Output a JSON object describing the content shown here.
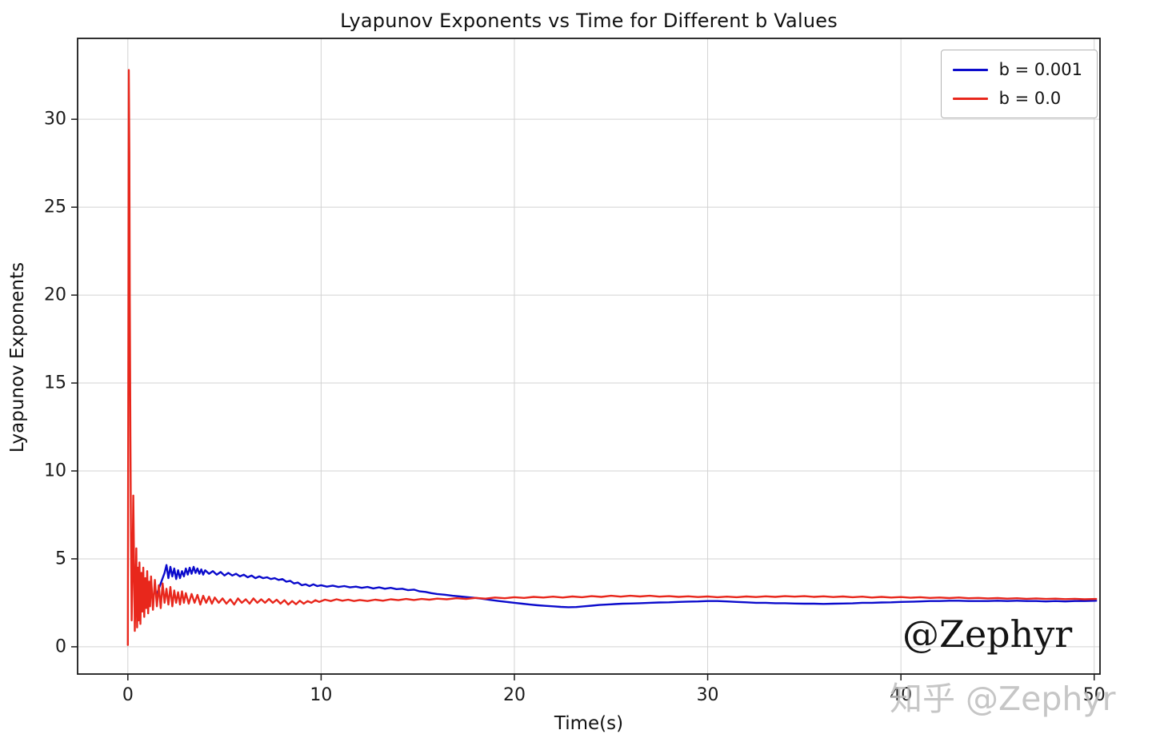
{
  "watermarks": {
    "primary": "@Zephyr",
    "secondary": "知乎 @Zephyr"
  },
  "chart_data": {
    "type": "line",
    "title": "Lyapunov Exponents vs Time for Different b Values",
    "xlabel": "Time(s)",
    "ylabel": "Lyapunov Exponents",
    "xlim": [
      -2.6,
      50.3
    ],
    "ylim": [
      -1.55,
      34.6
    ],
    "xticks": [
      0,
      10,
      20,
      30,
      40,
      50
    ],
    "yticks": [
      0,
      5,
      10,
      15,
      20,
      25,
      30
    ],
    "grid": true,
    "grid_color": "#d3d3d3",
    "axis_color": "#1a1a1a",
    "background": "#ffffff",
    "legend": {
      "position": "top-right",
      "entries": [
        {
          "label": "b = 0.001",
          "color": "#0b0bcc"
        },
        {
          "label": "b = 0.0",
          "color": "#e8271c"
        }
      ]
    },
    "series": [
      {
        "name": "b = 0.001",
        "color": "#0b0bcc",
        "points": [
          [
            1.5,
            3.0
          ],
          [
            1.7,
            3.6
          ],
          [
            1.9,
            4.2
          ],
          [
            2.0,
            4.65
          ],
          [
            2.1,
            3.9
          ],
          [
            2.2,
            4.55
          ],
          [
            2.3,
            4.0
          ],
          [
            2.4,
            4.45
          ],
          [
            2.5,
            3.85
          ],
          [
            2.6,
            4.35
          ],
          [
            2.7,
            3.9
          ],
          [
            2.8,
            4.3
          ],
          [
            2.9,
            4.0
          ],
          [
            3.0,
            4.45
          ],
          [
            3.1,
            4.1
          ],
          [
            3.2,
            4.5
          ],
          [
            3.3,
            4.15
          ],
          [
            3.4,
            4.55
          ],
          [
            3.5,
            4.2
          ],
          [
            3.6,
            4.45
          ],
          [
            3.7,
            4.15
          ],
          [
            3.8,
            4.4
          ],
          [
            3.9,
            4.1
          ],
          [
            4.0,
            4.35
          ],
          [
            4.2,
            4.15
          ],
          [
            4.4,
            4.3
          ],
          [
            4.6,
            4.1
          ],
          [
            4.8,
            4.25
          ],
          [
            5.0,
            4.05
          ],
          [
            5.2,
            4.2
          ],
          [
            5.4,
            4.05
          ],
          [
            5.6,
            4.15
          ],
          [
            5.8,
            4.0
          ],
          [
            6.0,
            4.1
          ],
          [
            6.2,
            3.95
          ],
          [
            6.4,
            4.05
          ],
          [
            6.6,
            3.9
          ],
          [
            6.8,
            4.0
          ],
          [
            7.0,
            3.9
          ],
          [
            7.2,
            3.95
          ],
          [
            7.4,
            3.85
          ],
          [
            7.6,
            3.9
          ],
          [
            7.8,
            3.8
          ],
          [
            8.0,
            3.85
          ],
          [
            8.2,
            3.7
          ],
          [
            8.4,
            3.75
          ],
          [
            8.6,
            3.6
          ],
          [
            8.8,
            3.65
          ],
          [
            9.0,
            3.5
          ],
          [
            9.2,
            3.55
          ],
          [
            9.4,
            3.45
          ],
          [
            9.6,
            3.55
          ],
          [
            9.8,
            3.45
          ],
          [
            10.0,
            3.5
          ],
          [
            10.3,
            3.42
          ],
          [
            10.6,
            3.48
          ],
          [
            10.9,
            3.4
          ],
          [
            11.2,
            3.45
          ],
          [
            11.5,
            3.38
          ],
          [
            11.8,
            3.42
          ],
          [
            12.1,
            3.35
          ],
          [
            12.4,
            3.4
          ],
          [
            12.7,
            3.32
          ],
          [
            13.0,
            3.38
          ],
          [
            13.3,
            3.3
          ],
          [
            13.6,
            3.35
          ],
          [
            13.9,
            3.28
          ],
          [
            14.2,
            3.3
          ],
          [
            14.5,
            3.22
          ],
          [
            14.8,
            3.25
          ],
          [
            15.1,
            3.15
          ],
          [
            15.4,
            3.12
          ],
          [
            15.7,
            3.05
          ],
          [
            16.0,
            3.0
          ],
          [
            16.4,
            2.96
          ],
          [
            16.8,
            2.9
          ],
          [
            17.2,
            2.86
          ],
          [
            17.6,
            2.82
          ],
          [
            18.0,
            2.78
          ],
          [
            18.4,
            2.72
          ],
          [
            18.8,
            2.66
          ],
          [
            19.2,
            2.6
          ],
          [
            19.6,
            2.55
          ],
          [
            20.0,
            2.5
          ],
          [
            20.4,
            2.45
          ],
          [
            20.8,
            2.4
          ],
          [
            21.2,
            2.36
          ],
          [
            21.6,
            2.33
          ],
          [
            22.0,
            2.3
          ],
          [
            22.4,
            2.27
          ],
          [
            22.8,
            2.25
          ],
          [
            23.2,
            2.26
          ],
          [
            23.6,
            2.3
          ],
          [
            24.0,
            2.34
          ],
          [
            24.4,
            2.38
          ],
          [
            24.8,
            2.4
          ],
          [
            25.2,
            2.43
          ],
          [
            25.6,
            2.45
          ],
          [
            26.0,
            2.46
          ],
          [
            26.5,
            2.48
          ],
          [
            27.0,
            2.5
          ],
          [
            27.5,
            2.52
          ],
          [
            28.0,
            2.53
          ],
          [
            28.5,
            2.55
          ],
          [
            29.0,
            2.57
          ],
          [
            29.5,
            2.58
          ],
          [
            30.0,
            2.6
          ],
          [
            30.5,
            2.6
          ],
          [
            31.0,
            2.58
          ],
          [
            31.5,
            2.55
          ],
          [
            32.0,
            2.53
          ],
          [
            32.5,
            2.5
          ],
          [
            33.0,
            2.5
          ],
          [
            33.5,
            2.48
          ],
          [
            34.0,
            2.48
          ],
          [
            34.5,
            2.46
          ],
          [
            35.0,
            2.45
          ],
          [
            35.5,
            2.45
          ],
          [
            36.0,
            2.44
          ],
          [
            36.5,
            2.45
          ],
          [
            37.0,
            2.46
          ],
          [
            37.5,
            2.47
          ],
          [
            38.0,
            2.5
          ],
          [
            38.5,
            2.5
          ],
          [
            39.0,
            2.52
          ],
          [
            39.5,
            2.53
          ],
          [
            40.0,
            2.55
          ],
          [
            40.5,
            2.56
          ],
          [
            41.0,
            2.58
          ],
          [
            41.5,
            2.6
          ],
          [
            42.0,
            2.6
          ],
          [
            42.5,
            2.62
          ],
          [
            43.0,
            2.62
          ],
          [
            43.5,
            2.6
          ],
          [
            44.0,
            2.6
          ],
          [
            44.5,
            2.6
          ],
          [
            45.0,
            2.62
          ],
          [
            45.5,
            2.6
          ],
          [
            46.0,
            2.62
          ],
          [
            46.5,
            2.6
          ],
          [
            47.0,
            2.6
          ],
          [
            47.5,
            2.58
          ],
          [
            48.0,
            2.6
          ],
          [
            48.5,
            2.58
          ],
          [
            49.0,
            2.6
          ],
          [
            49.5,
            2.6
          ],
          [
            50.1,
            2.62
          ]
        ]
      },
      {
        "name": "b = 0.0",
        "color": "#e8271c",
        "points": [
          [
            0.0,
            0.1
          ],
          [
            0.03,
            18.0
          ],
          [
            0.05,
            32.8
          ],
          [
            0.08,
            28.0
          ],
          [
            0.1,
            20.0
          ],
          [
            0.13,
            12.0
          ],
          [
            0.16,
            6.5
          ],
          [
            0.2,
            1.5
          ],
          [
            0.24,
            4.2
          ],
          [
            0.28,
            8.6
          ],
          [
            0.32,
            5.0
          ],
          [
            0.36,
            0.9
          ],
          [
            0.4,
            3.2
          ],
          [
            0.44,
            5.6
          ],
          [
            0.48,
            1.1
          ],
          [
            0.52,
            4.5
          ],
          [
            0.56,
            1.5
          ],
          [
            0.6,
            4.8
          ],
          [
            0.65,
            1.3
          ],
          [
            0.7,
            4.2
          ],
          [
            0.75,
            2.0
          ],
          [
            0.8,
            4.5
          ],
          [
            0.85,
            1.7
          ],
          [
            0.9,
            3.9
          ],
          [
            0.95,
            2.2
          ],
          [
            1.0,
            4.3
          ],
          [
            1.05,
            1.9
          ],
          [
            1.1,
            3.7
          ],
          [
            1.15,
            2.3
          ],
          [
            1.2,
            4.0
          ],
          [
            1.3,
            2.1
          ],
          [
            1.4,
            3.8
          ],
          [
            1.5,
            2.3
          ],
          [
            1.6,
            3.5
          ],
          [
            1.7,
            2.2
          ],
          [
            1.8,
            3.6
          ],
          [
            1.9,
            2.5
          ],
          [
            2.0,
            3.3
          ],
          [
            2.1,
            2.4
          ],
          [
            2.2,
            3.4
          ],
          [
            2.3,
            2.3
          ],
          [
            2.4,
            3.2
          ],
          [
            2.5,
            2.5
          ],
          [
            2.6,
            3.1
          ],
          [
            2.7,
            2.4
          ],
          [
            2.8,
            3.15
          ],
          [
            2.9,
            2.5
          ],
          [
            3.0,
            3.05
          ],
          [
            3.15,
            2.45
          ],
          [
            3.3,
            3.0
          ],
          [
            3.45,
            2.5
          ],
          [
            3.6,
            2.95
          ],
          [
            3.75,
            2.4
          ],
          [
            3.9,
            2.9
          ],
          [
            4.05,
            2.5
          ],
          [
            4.2,
            2.85
          ],
          [
            4.35,
            2.45
          ],
          [
            4.5,
            2.8
          ],
          [
            4.7,
            2.5
          ],
          [
            4.9,
            2.75
          ],
          [
            5.1,
            2.45
          ],
          [
            5.3,
            2.7
          ],
          [
            5.5,
            2.4
          ],
          [
            5.7,
            2.75
          ],
          [
            5.9,
            2.5
          ],
          [
            6.1,
            2.7
          ],
          [
            6.3,
            2.45
          ],
          [
            6.5,
            2.75
          ],
          [
            6.7,
            2.5
          ],
          [
            6.9,
            2.7
          ],
          [
            7.1,
            2.5
          ],
          [
            7.3,
            2.72
          ],
          [
            7.5,
            2.5
          ],
          [
            7.7,
            2.68
          ],
          [
            7.9,
            2.45
          ],
          [
            8.1,
            2.65
          ],
          [
            8.3,
            2.4
          ],
          [
            8.5,
            2.6
          ],
          [
            8.7,
            2.42
          ],
          [
            8.9,
            2.62
          ],
          [
            9.1,
            2.45
          ],
          [
            9.3,
            2.6
          ],
          [
            9.5,
            2.5
          ],
          [
            9.7,
            2.65
          ],
          [
            9.9,
            2.55
          ],
          [
            10.2,
            2.68
          ],
          [
            10.5,
            2.6
          ],
          [
            10.8,
            2.7
          ],
          [
            11.1,
            2.62
          ],
          [
            11.4,
            2.68
          ],
          [
            11.7,
            2.6
          ],
          [
            12.0,
            2.66
          ],
          [
            12.4,
            2.6
          ],
          [
            12.8,
            2.68
          ],
          [
            13.2,
            2.62
          ],
          [
            13.6,
            2.7
          ],
          [
            14.0,
            2.65
          ],
          [
            14.4,
            2.72
          ],
          [
            14.8,
            2.66
          ],
          [
            15.2,
            2.72
          ],
          [
            15.6,
            2.68
          ],
          [
            16.0,
            2.74
          ],
          [
            16.5,
            2.7
          ],
          [
            17.0,
            2.76
          ],
          [
            17.5,
            2.72
          ],
          [
            18.0,
            2.78
          ],
          [
            18.5,
            2.74
          ],
          [
            19.0,
            2.8
          ],
          [
            19.5,
            2.76
          ],
          [
            20.0,
            2.82
          ],
          [
            20.5,
            2.78
          ],
          [
            21.0,
            2.84
          ],
          [
            21.5,
            2.8
          ],
          [
            22.0,
            2.85
          ],
          [
            22.5,
            2.8
          ],
          [
            23.0,
            2.86
          ],
          [
            23.5,
            2.82
          ],
          [
            24.0,
            2.88
          ],
          [
            24.5,
            2.84
          ],
          [
            25.0,
            2.9
          ],
          [
            25.5,
            2.85
          ],
          [
            26.0,
            2.9
          ],
          [
            26.5,
            2.86
          ],
          [
            27.0,
            2.9
          ],
          [
            27.5,
            2.85
          ],
          [
            28.0,
            2.88
          ],
          [
            28.5,
            2.84
          ],
          [
            29.0,
            2.87
          ],
          [
            29.5,
            2.83
          ],
          [
            30.0,
            2.86
          ],
          [
            30.5,
            2.82
          ],
          [
            31.0,
            2.85
          ],
          [
            31.5,
            2.82
          ],
          [
            32.0,
            2.86
          ],
          [
            32.5,
            2.83
          ],
          [
            33.0,
            2.87
          ],
          [
            33.5,
            2.84
          ],
          [
            34.0,
            2.88
          ],
          [
            34.5,
            2.85
          ],
          [
            35.0,
            2.88
          ],
          [
            35.5,
            2.84
          ],
          [
            36.0,
            2.87
          ],
          [
            36.5,
            2.83
          ],
          [
            37.0,
            2.86
          ],
          [
            37.5,
            2.82
          ],
          [
            38.0,
            2.85
          ],
          [
            38.5,
            2.8
          ],
          [
            39.0,
            2.84
          ],
          [
            39.5,
            2.8
          ],
          [
            40.0,
            2.83
          ],
          [
            40.5,
            2.79
          ],
          [
            41.0,
            2.82
          ],
          [
            41.5,
            2.78
          ],
          [
            42.0,
            2.8
          ],
          [
            42.5,
            2.77
          ],
          [
            43.0,
            2.8
          ],
          [
            43.5,
            2.76
          ],
          [
            44.0,
            2.78
          ],
          [
            44.5,
            2.75
          ],
          [
            45.0,
            2.77
          ],
          [
            45.5,
            2.74
          ],
          [
            46.0,
            2.76
          ],
          [
            46.5,
            2.73
          ],
          [
            47.0,
            2.75
          ],
          [
            47.5,
            2.72
          ],
          [
            48.0,
            2.74
          ],
          [
            48.5,
            2.71
          ],
          [
            49.0,
            2.73
          ],
          [
            49.5,
            2.7
          ],
          [
            50.1,
            2.72
          ]
        ]
      }
    ]
  }
}
